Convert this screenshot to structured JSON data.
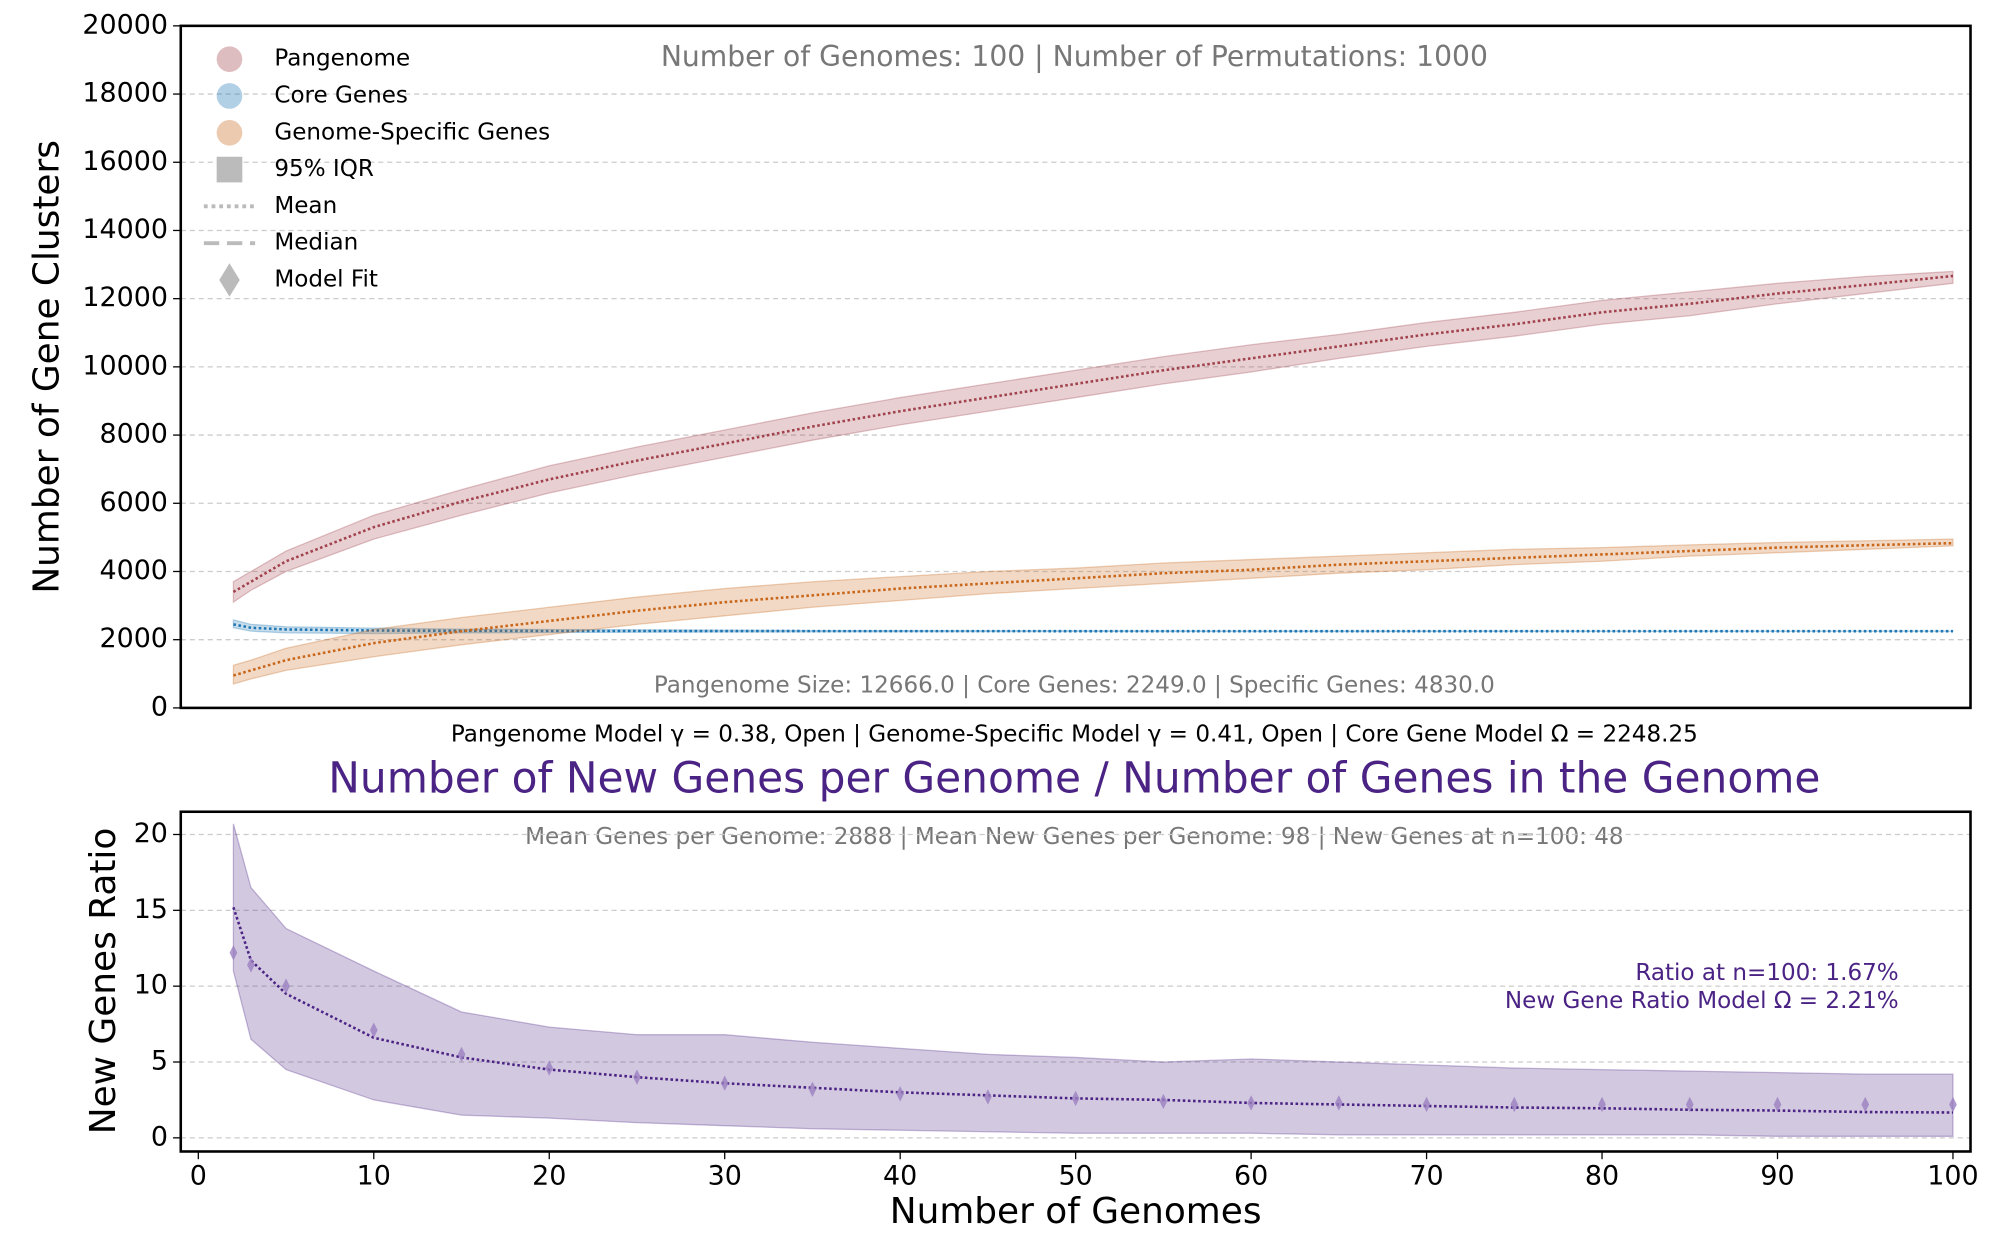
{
  "chart_data": [
    {
      "type": "line",
      "ylabel": "Number of Gene Clusters",
      "xlabel": "Pangenome Model γ = 0.38, Open  |  Genome-Specific Model γ = 0.41, Open  |  Core Gene Model Ω = 2248.25",
      "annotations": [
        "Number of Genomes: 100  |  Number of Permutations: 1000",
        "Pangenome Size: 12666.0  |  Core Genes: 2249.0  |  Specific Genes: 4830.0"
      ],
      "legend_extra": [
        "95% IQR",
        "Mean",
        "Median",
        "Model Fit"
      ],
      "xlim": [
        -1,
        101
      ],
      "ylim": [
        0,
        20000
      ],
      "yticks": [
        0,
        2000,
        4000,
        6000,
        8000,
        10000,
        12000,
        14000,
        16000,
        18000,
        20000
      ],
      "grid": true,
      "x": [
        2,
        3,
        5,
        10,
        15,
        20,
        25,
        30,
        35,
        40,
        45,
        50,
        55,
        60,
        65,
        70,
        75,
        80,
        85,
        90,
        95,
        100
      ],
      "series": [
        {
          "name": "Pangenome",
          "color": "#a0414b",
          "values": [
            3400,
            3700,
            4300,
            5300,
            6050,
            6700,
            7250,
            7750,
            8250,
            8700,
            9100,
            9500,
            9900,
            10250,
            10600,
            10950,
            11250,
            11600,
            11850,
            12150,
            12400,
            12666
          ],
          "lower": [
            3100,
            3450,
            4000,
            4950,
            5650,
            6300,
            6850,
            7350,
            7850,
            8300,
            8700,
            9100,
            9500,
            9850,
            10250,
            10600,
            10900,
            11250,
            11500,
            11850,
            12150,
            12450
          ],
          "upper": [
            3700,
            4000,
            4600,
            5650,
            6400,
            7100,
            7650,
            8150,
            8650,
            9100,
            9500,
            9900,
            10300,
            10650,
            10950,
            11300,
            11600,
            11950,
            12200,
            12450,
            12650,
            12800
          ]
        },
        {
          "name": "Core Genes",
          "color": "#1f77b4",
          "values": [
            2450,
            2350,
            2300,
            2270,
            2260,
            2255,
            2255,
            2253,
            2252,
            2251,
            2251,
            2250,
            2250,
            2250,
            2250,
            2250,
            2249,
            2249,
            2249,
            2249,
            2249,
            2249
          ],
          "lower": [
            2350,
            2250,
            2200,
            2180,
            2200,
            2210,
            2220,
            2225,
            2230,
            2235,
            2238,
            2240,
            2240,
            2240,
            2242,
            2242,
            2244,
            2245,
            2245,
            2246,
            2247,
            2247
          ],
          "upper": [
            2580,
            2450,
            2380,
            2340,
            2310,
            2300,
            2290,
            2280,
            2270,
            2265,
            2262,
            2260,
            2258,
            2256,
            2255,
            2254,
            2253,
            2252,
            2251,
            2251,
            2250,
            2250
          ]
        },
        {
          "name": "Genome-Specific Genes",
          "color": "#c8661a",
          "values": [
            950,
            1100,
            1400,
            1900,
            2250,
            2550,
            2850,
            3100,
            3300,
            3500,
            3650,
            3800,
            3950,
            4050,
            4200,
            4300,
            4400,
            4500,
            4600,
            4700,
            4770,
            4830
          ],
          "lower": [
            700,
            850,
            1100,
            1500,
            1850,
            2150,
            2450,
            2700,
            2950,
            3150,
            3350,
            3500,
            3650,
            3800,
            3950,
            4050,
            4200,
            4300,
            4450,
            4550,
            4650,
            4750
          ],
          "upper": [
            1250,
            1400,
            1750,
            2300,
            2650,
            2950,
            3250,
            3500,
            3700,
            3850,
            4000,
            4100,
            4250,
            4350,
            4450,
            4550,
            4650,
            4700,
            4780,
            4850,
            4900,
            4950
          ]
        }
      ]
    },
    {
      "type": "line",
      "title": "Number of New Genes per Genome / Number of Genes in the Genome",
      "ylabel": "New Genes Ratio",
      "xlabel": "Number of Genomes",
      "annotations": [
        "Mean Genes per Genome: 2888  |  Mean New Genes per Genome: 98  |  New Genes at n=100: 48",
        "Ratio at n=100: 1.67%",
        "New Gene Ratio Model Ω = 2.21%"
      ],
      "xlim": [
        -1,
        101
      ],
      "ylim": [
        -0.9,
        21.5
      ],
      "xticks": [
        0,
        10,
        20,
        30,
        40,
        50,
        60,
        70,
        80,
        90,
        100
      ],
      "yticks": [
        0,
        5,
        10,
        15,
        20
      ],
      "grid": true,
      "x": [
        2,
        3,
        5,
        10,
        15,
        20,
        25,
        30,
        35,
        40,
        45,
        50,
        55,
        60,
        65,
        70,
        75,
        80,
        85,
        90,
        95,
        100
      ],
      "series": [
        {
          "color": "#4b2384",
          "values": [
            15.2,
            11.7,
            9.5,
            6.6,
            5.3,
            4.5,
            4.0,
            3.6,
            3.3,
            3.0,
            2.8,
            2.6,
            2.5,
            2.3,
            2.2,
            2.1,
            2.0,
            1.95,
            1.85,
            1.8,
            1.7,
            1.67
          ],
          "lower": [
            11,
            6.5,
            4.5,
            2.5,
            1.5,
            1.3,
            1,
            0.8,
            0.6,
            0.5,
            0.4,
            0.3,
            0.3,
            0.3,
            0.2,
            0.2,
            0.2,
            0.2,
            0.2,
            0.1,
            0.1,
            0.1
          ],
          "upper": [
            20.7,
            16.5,
            13.8,
            11,
            8.3,
            7.3,
            6.8,
            6.8,
            6.3,
            5.9,
            5.5,
            5.3,
            5.0,
            5.2,
            5.0,
            4.8,
            4.6,
            4.5,
            4.4,
            4.3,
            4.2,
            4.2
          ],
          "fit": [
            12.2,
            11.4,
            10,
            7.1,
            5.5,
            4.6,
            4.0,
            3.6,
            3.2,
            2.9,
            2.7,
            2.6,
            2.4,
            2.3,
            2.3,
            2.2,
            2.2,
            2.2,
            2.2,
            2.2,
            2.2,
            2.2
          ]
        }
      ]
    }
  ]
}
